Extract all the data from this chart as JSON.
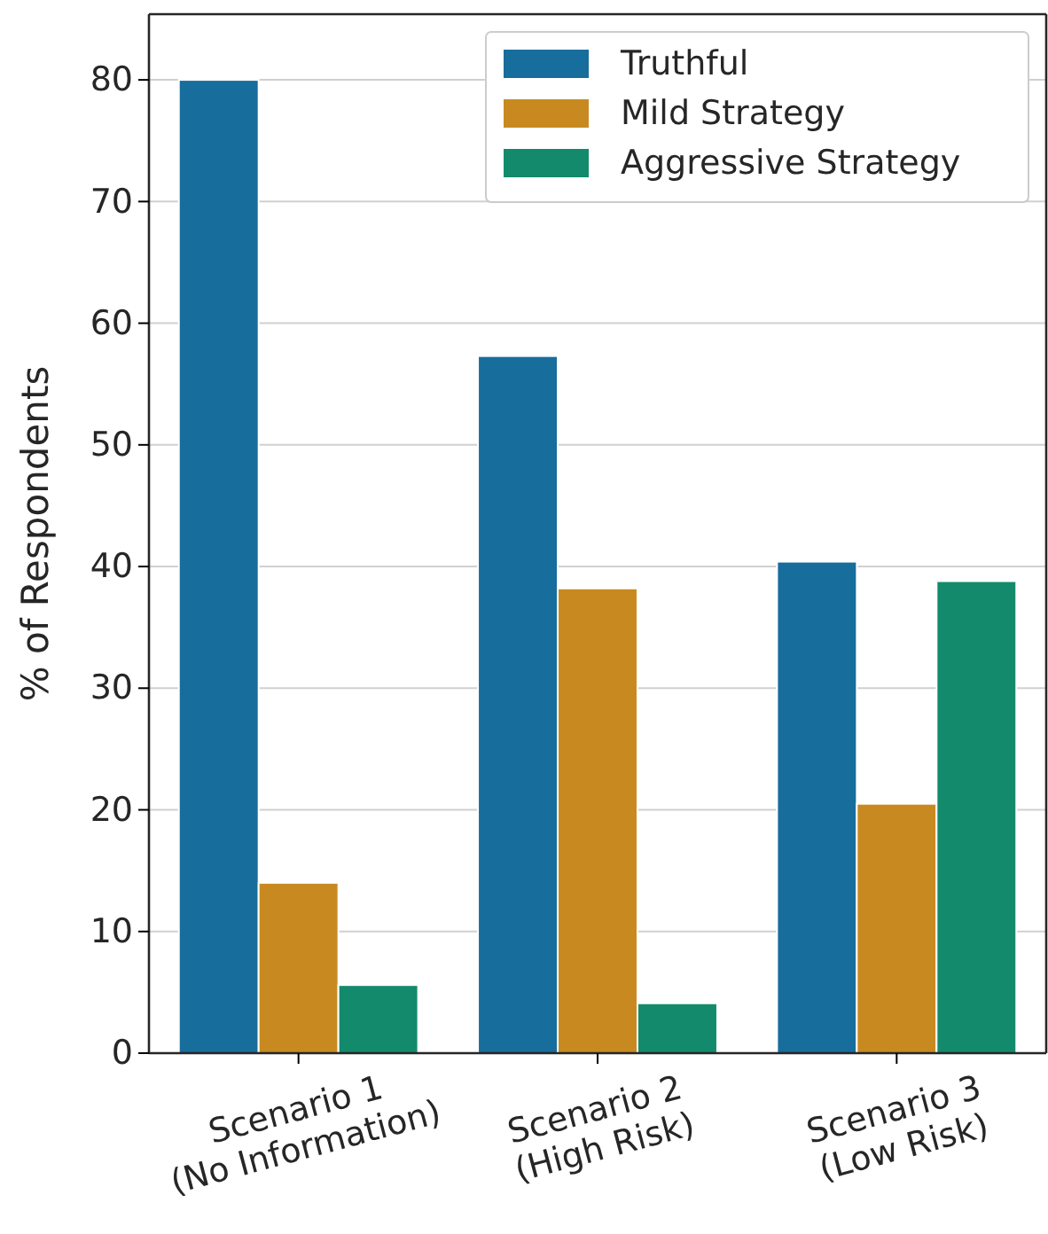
{
  "chart_data": {
    "type": "bar",
    "ylabel": "% of Respondents",
    "categories": [
      "Scenario 1\n(No Information)",
      "Scenario 2\n(High Risk)",
      "Scenario 3\n(Low Risk)"
    ],
    "series": [
      {
        "name": "Truthful",
        "color": "#176d9c",
        "values": [
          80,
          57.3,
          40.4
        ]
      },
      {
        "name": "Mild Strategy",
        "color": "#c88a20",
        "values": [
          14.0,
          38.2,
          20.5
        ]
      },
      {
        "name": "Aggressive Strategy",
        "color": "#138a6b",
        "values": [
          5.6,
          4.1,
          38.8
        ]
      }
    ],
    "ylim": [
      0,
      85.4
    ],
    "yticks": [
      0,
      10,
      20,
      30,
      40,
      50,
      60,
      70,
      80
    ],
    "grid": "y",
    "legend": "top right"
  }
}
